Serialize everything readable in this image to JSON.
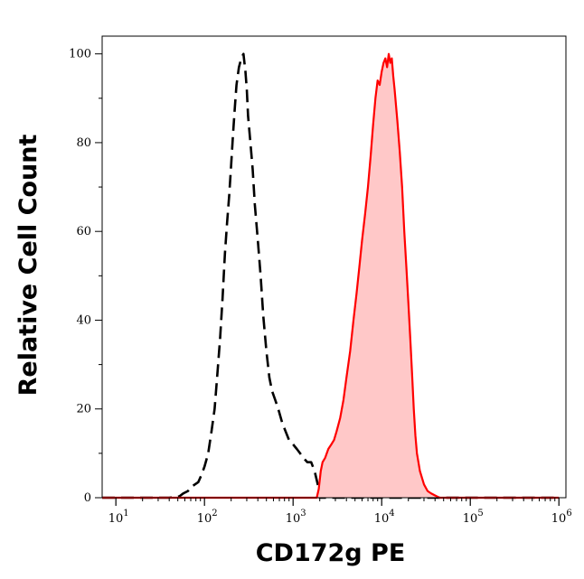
{
  "chart_data": {
    "type": "area",
    "title": "",
    "xlabel": "CD172g PE",
    "ylabel": "Relative Cell Count",
    "x_scale": "log",
    "xlim": [
      7,
      1200000
    ],
    "ylim": [
      0,
      104
    ],
    "grid": false,
    "legend": "none",
    "x_ticks": [
      {
        "value": 10,
        "base": "10",
        "exp": "1"
      },
      {
        "value": 100,
        "base": "10",
        "exp": "2"
      },
      {
        "value": 1000,
        "base": "10",
        "exp": "3"
      },
      {
        "value": 10000,
        "base": "10",
        "exp": "4"
      },
      {
        "value": 100000,
        "base": "10",
        "exp": "5"
      },
      {
        "value": 1000000,
        "base": "10",
        "exp": "6"
      }
    ],
    "y_ticks": [
      0,
      20,
      40,
      60,
      80,
      100
    ],
    "colors": {
      "stained_line": "#ff0000",
      "stained_fill": "#ffc8c8",
      "control_line": "#000000"
    },
    "series": [
      {
        "style": "dashed",
        "x": [
          7,
          40,
          52,
          58,
          65,
          72,
          78,
          85,
          92,
          100,
          110,
          120,
          130,
          140,
          150,
          160,
          170,
          180,
          190,
          200,
          210,
          220,
          230,
          245,
          260,
          275,
          290,
          300,
          310,
          330,
          350,
          370,
          400,
          430,
          460,
          500,
          540,
          580,
          630,
          680,
          750,
          820,
          900,
          1000,
          1100,
          1200,
          1300,
          1450,
          1600,
          1750,
          1900,
          2000,
          1000000
        ],
        "y": [
          0,
          0,
          0.3,
          1,
          1.5,
          2.5,
          3,
          3.5,
          5,
          7,
          10,
          15,
          20,
          28,
          36,
          45,
          55,
          62,
          68,
          75,
          82,
          88,
          93,
          97,
          99,
          100,
          96,
          92,
          86,
          80,
          74,
          66,
          58,
          50,
          41,
          33,
          27,
          24,
          22,
          20,
          17,
          15,
          13,
          12,
          11,
          10,
          9,
          8,
          8,
          6,
          3,
          0,
          0
        ]
      },
      {
        "style": "filled",
        "x": [
          7,
          1850,
          1950,
          2050,
          2150,
          2300,
          2500,
          2700,
          2900,
          3100,
          3400,
          3700,
          4000,
          4400,
          4800,
          5200,
          5600,
          6000,
          6500,
          7000,
          7500,
          8000,
          8500,
          9000,
          9500,
          10000,
          10500,
          11000,
          11500,
          12000,
          12500,
          13000,
          13500,
          14000,
          15000,
          16000,
          17000,
          18000,
          19000,
          20000,
          21000,
          22000,
          23000,
          24000,
          25000,
          27000,
          30000,
          33000,
          36000,
          40000,
          45000,
          1000000
        ],
        "y": [
          0,
          0,
          2,
          6,
          8,
          9,
          11,
          12,
          13,
          15,
          18,
          22,
          27,
          33,
          40,
          46,
          52,
          58,
          64,
          70,
          77,
          84,
          90,
          94,
          93,
          96,
          98,
          99,
          97,
          100,
          98,
          99,
          95,
          92,
          85,
          78,
          70,
          60,
          52,
          44,
          36,
          28,
          20,
          14,
          10,
          6,
          3,
          1.5,
          1,
          0.5,
          0,
          0
        ]
      }
    ]
  }
}
